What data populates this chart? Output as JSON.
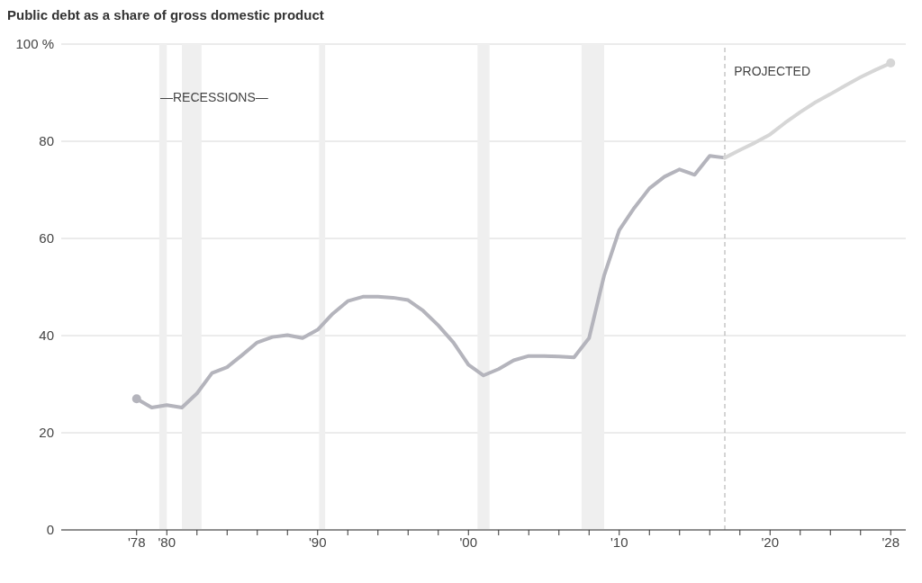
{
  "chart_data": {
    "type": "line",
    "title": "Public debt as a share of gross domestic product",
    "series": [
      {
        "color": "#b4b4bc",
        "x": [
          1978,
          1979,
          1980,
          1981,
          1982,
          1983,
          1984,
          1985,
          1986,
          1987,
          1988,
          1989,
          1990,
          1991,
          1992,
          1993,
          1994,
          1995,
          1996,
          1997,
          1998,
          1999,
          2000,
          2001,
          2002,
          2003,
          2004,
          2005,
          2006,
          2007,
          2008,
          2009,
          2010,
          2011,
          2012,
          2013,
          2014,
          2015,
          2016,
          2017
        ],
        "values": [
          27,
          25.2,
          25.7,
          25.2,
          28.1,
          32.3,
          33.5,
          36,
          38.6,
          39.7,
          40.1,
          39.5,
          41.2,
          44.5,
          47.1,
          48,
          48,
          47.8,
          47.3,
          45.1,
          42.1,
          38.6,
          34,
          31.8,
          33.1,
          34.9,
          35.8,
          35.8,
          35.7,
          35.5,
          39.5,
          52.4,
          61.7,
          66.3,
          70.3,
          72.7,
          74.2,
          73.1,
          77,
          76.6
        ]
      },
      {
        "color": "#d6d6d6",
        "x": [
          2017,
          2018,
          2019,
          2020,
          2021,
          2022,
          2023,
          2024,
          2025,
          2026,
          2027,
          2028
        ],
        "values": [
          76.6,
          78.2,
          79.7,
          81.4,
          83.8,
          86,
          88,
          89.7,
          91.5,
          93.2,
          94.7,
          96.1
        ]
      },
      {
        "type": "scatter",
        "marker": "circle",
        "color": "#b4b4bc",
        "x": [
          1978
        ],
        "values": [
          27
        ]
      },
      {
        "type": "scatter",
        "marker": "circle",
        "color": "#d6d6d6",
        "x": [
          2028
        ],
        "values": [
          96.1
        ]
      }
    ],
    "xlim": [
      1973,
      2029
    ],
    "xticks": [
      {
        "value": 1978,
        "label": "'78"
      },
      {
        "value": 1980,
        "label": "'80"
      },
      {
        "value": 1982,
        "label": null
      },
      {
        "value": 1984,
        "label": null
      },
      {
        "value": 1986,
        "label": null
      },
      {
        "value": 1988,
        "label": null
      },
      {
        "value": 1990,
        "label": "'90"
      },
      {
        "value": 1992,
        "label": null
      },
      {
        "value": 1994,
        "label": null
      },
      {
        "value": 1996,
        "label": null
      },
      {
        "value": 1998,
        "label": null
      },
      {
        "value": 2000,
        "label": "'00"
      },
      {
        "value": 2002,
        "label": null
      },
      {
        "value": 2004,
        "label": null
      },
      {
        "value": 2006,
        "label": null
      },
      {
        "value": 2008,
        "label": null
      },
      {
        "value": 2010,
        "label": "'10"
      },
      {
        "value": 2012,
        "label": null
      },
      {
        "value": 2014,
        "label": null
      },
      {
        "value": 2016,
        "label": null
      },
      {
        "value": 2018,
        "label": null
      },
      {
        "value": 2020,
        "label": "'20"
      },
      {
        "value": 2022,
        "label": null
      },
      {
        "value": 2024,
        "label": null
      },
      {
        "value": 2026,
        "label": null
      },
      {
        "value": 2028,
        "label": "'28"
      }
    ],
    "ylim": [
      0,
      100
    ],
    "yticks": [
      0,
      20,
      40,
      60,
      80,
      {
        "value": 100,
        "label": "100 %"
      }
    ],
    "grid": "y",
    "legend": false,
    "line_style": "solid",
    "bands": [
      {
        "axis": "x",
        "from": 1979.5,
        "to": 1980,
        "color": "#efefef"
      },
      {
        "axis": "x",
        "from": 1981,
        "to": 1982.3,
        "color": "#efefef"
      },
      {
        "axis": "x",
        "from": 1990.1,
        "to": 1990.5,
        "color": "#efefef"
      },
      {
        "axis": "x",
        "from": 2000.6,
        "to": 2001.4,
        "color": "#efefef"
      },
      {
        "axis": "x",
        "from": 2007.5,
        "to": 2009,
        "color": "#efefef"
      }
    ],
    "ref_lines": [
      {
        "axis": "x",
        "value": 2017,
        "label": "PROJECTED",
        "color": "#aaaaaa",
        "line_style": "dashed"
      }
    ],
    "annotations": [
      "—RECESSIONS—"
    ]
  }
}
